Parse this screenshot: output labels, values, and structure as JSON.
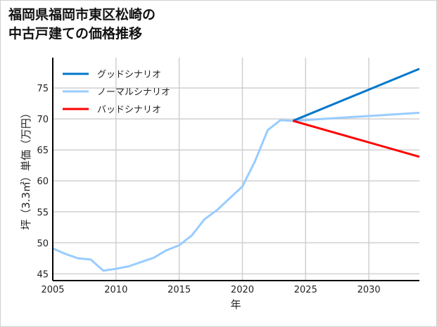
{
  "chart_data": {
    "type": "line",
    "title_lines": [
      "福岡県福岡市東区松崎の",
      "中古戸建ての価格推移"
    ],
    "xlabel": "年",
    "ylabel": "坪（3.3㎡）単価（万円）",
    "xlim": [
      2005,
      2034
    ],
    "ylim": [
      43.9,
      79.9
    ],
    "xticks": [
      2005,
      2010,
      2015,
      2020,
      2025,
      2030
    ],
    "yticks": [
      45,
      50,
      55,
      60,
      65,
      70,
      75
    ],
    "grid": true,
    "legend_position": "top-left",
    "series": [
      {
        "name": "グッドシナリオ",
        "color": "#0077cc",
        "x": [
          2024,
          2034
        ],
        "y": [
          69.7,
          78.1
        ]
      },
      {
        "name": "ノーマルシナリオ",
        "color": "#99ccff",
        "x": [
          2005,
          2006,
          2007,
          2008,
          2009,
          2010,
          2011,
          2012,
          2013,
          2014,
          2015,
          2016,
          2017,
          2018,
          2019,
          2020,
          2021,
          2022,
          2023,
          2024,
          2034
        ],
        "y": [
          49.1,
          48.2,
          47.5,
          47.3,
          45.5,
          45.8,
          46.2,
          46.9,
          47.6,
          48.8,
          49.6,
          51.2,
          53.8,
          55.3,
          57.2,
          59.1,
          63.2,
          68.2,
          69.8,
          69.7,
          71.0
        ]
      },
      {
        "name": "バッドシナリオ",
        "color": "#ff0000",
        "x": [
          2024,
          2034
        ],
        "y": [
          69.7,
          63.9
        ]
      }
    ]
  }
}
